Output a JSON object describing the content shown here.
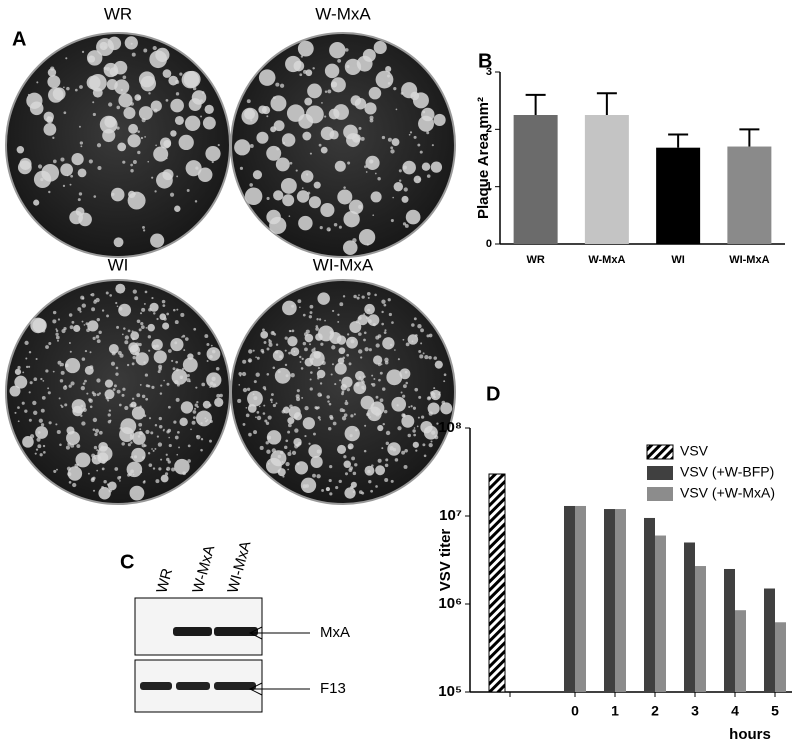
{
  "panel_a": {
    "panel": "A",
    "plates": [
      "WR",
      "W-MxA",
      "WI",
      "WI-MxA"
    ]
  },
  "panel_c": {
    "panel": "C",
    "lanes": [
      "WR",
      "W-MxA",
      "WI-MxA"
    ],
    "bands": [
      "MxA",
      "F13"
    ]
  },
  "chart_data": [
    {
      "type": "bar",
      "panel": "B",
      "y_label": "Plaque Area mm²",
      "categories": [
        "WR",
        "W-MxA",
        "WI",
        "WI-MxA"
      ],
      "values": [
        2.25,
        2.25,
        1.68,
        1.7
      ],
      "errors": [
        0.35,
        0.38,
        0.23,
        0.3
      ],
      "colors": [
        "#6b6b6b",
        "#c4c4c4",
        "#000000",
        "#8a8a8a"
      ],
      "ylim": [
        0,
        3
      ],
      "yticks": [
        0,
        1,
        2,
        3
      ]
    },
    {
      "type": "bar",
      "panel": "D",
      "y_label": "VSV titer",
      "x_label": "hours",
      "log_scale": true,
      "categories": [
        null,
        "0",
        "1",
        "2",
        "3",
        "4",
        "5"
      ],
      "series": [
        {
          "name": "VSV",
          "color": "#ffffff",
          "hatch": true,
          "values": [
            30000000,
            null,
            null,
            null,
            null,
            null,
            null
          ]
        },
        {
          "name": "VSV (+W-BFP)",
          "color": "#404040",
          "values": [
            null,
            13000000,
            12000000,
            9500000,
            5000000,
            2500000,
            1500000
          ]
        },
        {
          "name": "VSV (+W-MxA)",
          "color": "#8c8c8c",
          "values": [
            null,
            13000000,
            12000000,
            6000000,
            2700000,
            850000,
            620000
          ]
        }
      ],
      "ylim": [
        100000,
        100000000
      ],
      "yticks": [
        {
          "value": 100000,
          "label": "10⁵"
        },
        {
          "value": 1000000,
          "label": "10⁶"
        },
        {
          "value": 10000000,
          "label": "10⁷"
        },
        {
          "value": 100000000,
          "label": "10⁸"
        }
      ]
    }
  ]
}
